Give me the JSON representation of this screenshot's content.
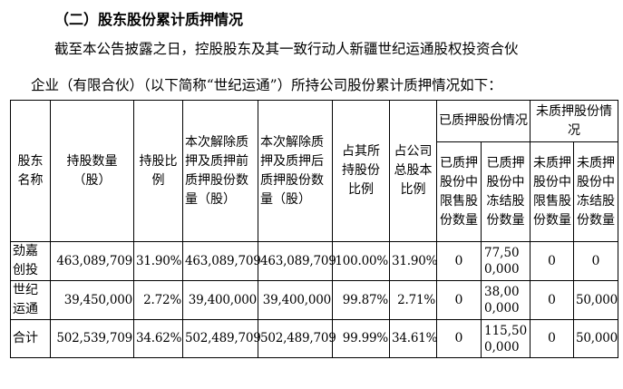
{
  "heading": "（二）股东股份累计质押情况",
  "paragraph_line1": "截至本公告披露之日，控股股东及其一致行动人新疆世纪运通股权投资合伙",
  "paragraph_line2": "企业（有限合伙）（以下简称“世纪运通”）所持公司股份累计质押情况如下：",
  "table": {
    "headers": {
      "name": "股东名称",
      "shares": "持股数量（股）",
      "ratio": "持股比例",
      "before": "本次解除质押及质押前质押股份数量（股）",
      "after": "本次解除质押及质押后质押股份数量（股）",
      "pct_holding": "占其所持股份比例",
      "pct_total": "占公司总股本比例",
      "pledged_group": "已质押股份情况",
      "unpledged_group": "未质押股份情况",
      "pledged_restricted": "已质押股份中限售股份数量",
      "pledged_frozen": "已质押股份中冻结股份数量",
      "unpledged_restricted": "未质押股份中限售股份数量",
      "unpledged_frozen": "未质押股份中冻结股份数量"
    },
    "rows": [
      {
        "name": "劲嘉创投",
        "shares": "463,089,709",
        "ratio": "31.90%",
        "before": "463,089,709",
        "after": "463,089,709",
        "pct_holding": "100.00%",
        "pct_total": "31.90%",
        "pledged_restricted": "0",
        "pledged_frozen": "77,500,000",
        "unpledged_restricted": "0",
        "unpledged_frozen": "0"
      },
      {
        "name": "世纪运通",
        "shares": "39,450,000",
        "ratio": "2.72%",
        "before": "39,400,000",
        "after": "39,400,000",
        "pct_holding": "99.87%",
        "pct_total": "2.71%",
        "pledged_restricted": "0",
        "pledged_frozen": "38,000,000",
        "unpledged_restricted": "0",
        "unpledged_frozen": "50,000"
      },
      {
        "name": "合计",
        "shares": "502,539,709",
        "ratio": "34.62%",
        "before": "502,489,709",
        "after": "502,489,709",
        "pct_holding": "99.99%",
        "pct_total": "34.61%",
        "pledged_restricted": "0",
        "pledged_frozen": "115,500,000",
        "unpledged_restricted": "0",
        "unpledged_frozen": "50,000"
      }
    ]
  }
}
